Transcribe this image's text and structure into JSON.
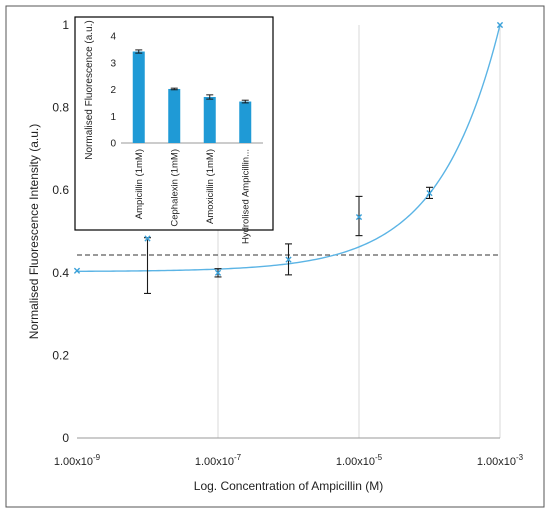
{
  "chart_data": [
    {
      "type": "scatter",
      "xlabel": "Log. Concentration of Ampicillin (M)",
      "ylabel": "Normalised Fluorescence Intensity (a.u.)",
      "xscale": "log",
      "xlim": [
        1e-09,
        0.001
      ],
      "ylim": [
        0,
        1
      ],
      "x_ticks": [
        1e-09,
        1e-07,
        1e-05,
        0.001
      ],
      "x_tick_labels": [
        {
          "mantissa": "1.00x10",
          "exponent": "-9"
        },
        {
          "mantissa": "1.00x10",
          "exponent": "-7"
        },
        {
          "mantissa": "1.00x10",
          "exponent": "-5"
        },
        {
          "mantissa": "1.00x10",
          "exponent": "-3"
        }
      ],
      "y_ticks": [
        0,
        0.2,
        0.4,
        0.6,
        0.8,
        1
      ],
      "y_tick_labels": [
        "0",
        "0.2",
        "0.4",
        "0.6",
        "0.8",
        "1"
      ],
      "grid": "vertical-only",
      "points": [
        {
          "x": 1e-09,
          "y": 0.405,
          "err_low": 0.405,
          "err_high": 0.405
        },
        {
          "x": 1e-08,
          "y": 0.483,
          "err_low": 0.35,
          "err_high": 0.485
        },
        {
          "x": 1e-07,
          "y": 0.4,
          "err_low": 0.39,
          "err_high": 0.41
        },
        {
          "x": 1e-06,
          "y": 0.432,
          "err_low": 0.395,
          "err_high": 0.47
        },
        {
          "x": 1e-05,
          "y": 0.535,
          "err_low": 0.49,
          "err_high": 0.585
        },
        {
          "x": 0.0001,
          "y": 0.593,
          "err_low": 0.58,
          "err_high": 0.607
        },
        {
          "x": 0.001,
          "y": 1.0,
          "err_low": 1.0,
          "err_high": 1.0
        }
      ],
      "fit_curve": {
        "baseline": 0.403,
        "amplitude": 0.597,
        "x_ref": 0.001,
        "power": 0.5
      },
      "threshold_line": {
        "y": 0.443,
        "style": "dashed"
      },
      "colors": {
        "markers": "#3aa0d8",
        "fit": "#5bb4e5",
        "error_bars": "#1a1a1a",
        "threshold": "#333333"
      }
    },
    {
      "type": "bar",
      "inset": true,
      "ylabel": "Normalised Fluorescence (a.u.)",
      "categories": [
        "Ampicillin (1mM)",
        "Cephalexin (1mM)",
        "Amoxicillin (1mM)",
        "Hydrolised Ampicillin..."
      ],
      "values": [
        3.42,
        2.02,
        1.72,
        1.55
      ],
      "errors": [
        0.06,
        0.03,
        0.08,
        0.05
      ],
      "ylim": [
        0,
        4
      ],
      "y_ticks": [
        0,
        1,
        2,
        3,
        4
      ],
      "y_tick_labels": [
        "0",
        "1",
        "2",
        "3",
        "4"
      ],
      "grid": "none",
      "colors": {
        "bars": "#1f9ad6",
        "error_bars": "#1a1a1a"
      }
    }
  ]
}
